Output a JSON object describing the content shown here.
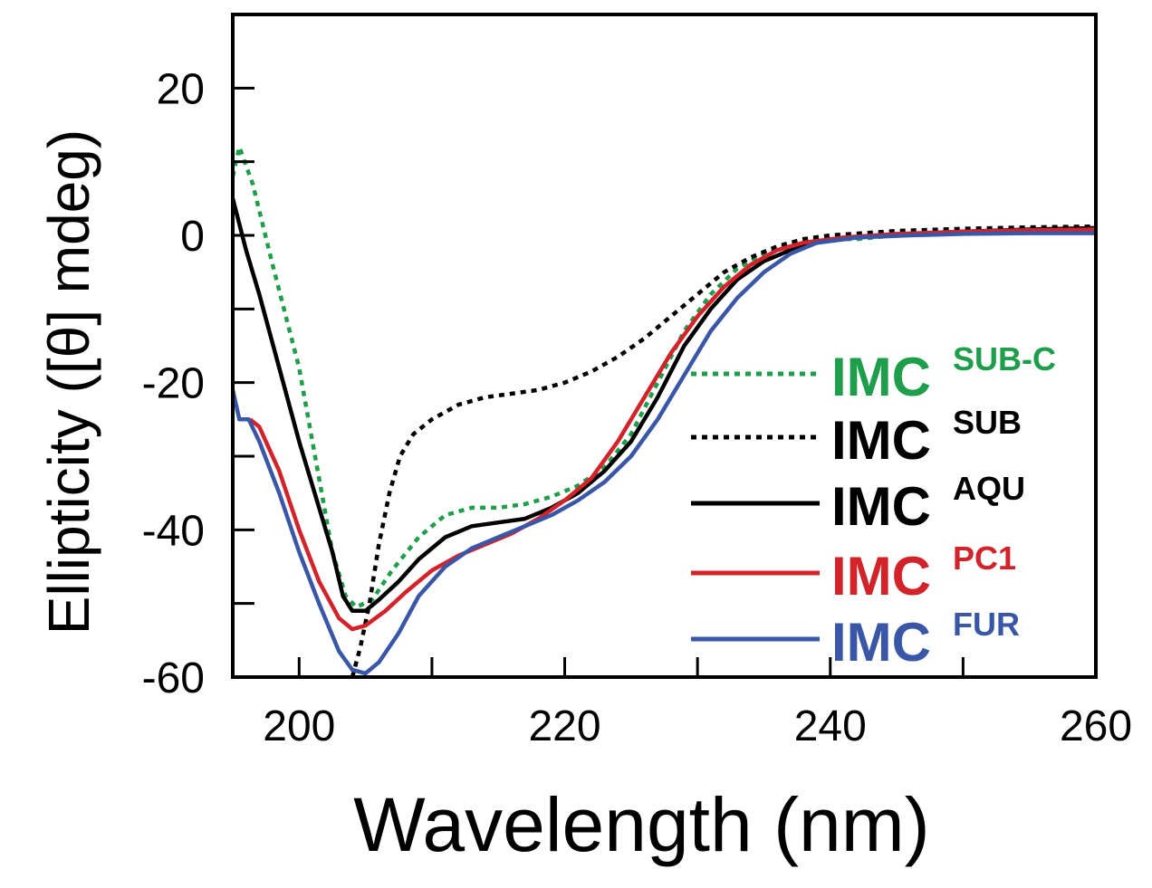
{
  "chart_data": {
    "type": "line",
    "title": "",
    "xlabel": "Wavelength (nm)",
    "ylabel": "Ellipticity ([θ] mdeg)",
    "xlim": [
      195,
      260
    ],
    "ylim": [
      -60,
      30
    ],
    "x_ticks": [
      200,
      220,
      240,
      260
    ],
    "x_tick_labels": [
      "200",
      "220",
      "240",
      "260"
    ],
    "y_ticks": [
      20,
      0,
      -20,
      -40,
      -60
    ],
    "y_tick_labels": [
      "20",
      "0",
      "-20",
      "-40",
      "-60"
    ],
    "legend_position": "right",
    "series": [
      {
        "name": "IMC",
        "superscript": "SUB-C",
        "color": "#1e9e4a",
        "dash": "dotted",
        "points": [
          [
            195,
            8
          ],
          [
            195.5,
            12
          ],
          [
            196.5,
            7
          ],
          [
            198,
            -4
          ],
          [
            200,
            -18
          ],
          [
            201.5,
            -33
          ],
          [
            202.5,
            -43
          ],
          [
            203.5,
            -49
          ],
          [
            204.3,
            -50.5
          ],
          [
            205.5,
            -49.5
          ],
          [
            207,
            -45.5
          ],
          [
            209,
            -41
          ],
          [
            211,
            -38
          ],
          [
            213,
            -37
          ],
          [
            215,
            -37
          ],
          [
            217,
            -36.5
          ],
          [
            219,
            -35.5
          ],
          [
            221,
            -34
          ],
          [
            223,
            -31.5
          ],
          [
            225,
            -27
          ],
          [
            227,
            -20
          ],
          [
            229,
            -13
          ],
          [
            231,
            -8
          ],
          [
            233,
            -4.5
          ],
          [
            235,
            -2.5
          ],
          [
            237,
            -1.2
          ],
          [
            239,
            -0.5
          ],
          [
            242,
            -0.5
          ],
          [
            246,
            0.2
          ],
          [
            250,
            0.5
          ],
          [
            255,
            0.8
          ],
          [
            260,
            1
          ]
        ]
      },
      {
        "name": "IMC",
        "superscript": "SUB",
        "color": "#000000",
        "dash": "dotted",
        "points": [
          [
            204,
            -60
          ],
          [
            204.6,
            -56
          ],
          [
            205.3,
            -50
          ],
          [
            206,
            -42
          ],
          [
            206.8,
            -35
          ],
          [
            207.6,
            -30
          ],
          [
            208.6,
            -27
          ],
          [
            210,
            -25
          ],
          [
            212,
            -23
          ],
          [
            214,
            -22
          ],
          [
            216,
            -21.5
          ],
          [
            218,
            -21
          ],
          [
            220,
            -20
          ],
          [
            222,
            -18.5
          ],
          [
            224,
            -16.5
          ],
          [
            226,
            -14
          ],
          [
            228,
            -11
          ],
          [
            230,
            -8
          ],
          [
            232,
            -5
          ],
          [
            234,
            -3
          ],
          [
            236,
            -1.5
          ],
          [
            238,
            -0.5
          ],
          [
            240,
            0
          ],
          [
            245,
            0.6
          ],
          [
            250,
            0.9
          ],
          [
            255,
            1.1
          ],
          [
            260,
            1.2
          ]
        ]
      },
      {
        "name": "IMC",
        "superscript": "AQU",
        "color": "#000000",
        "dash": "solid",
        "points": [
          [
            195,
            5
          ],
          [
            196,
            -2
          ],
          [
            197,
            -8
          ],
          [
            198.5,
            -18
          ],
          [
            200,
            -28
          ],
          [
            201.5,
            -37
          ],
          [
            202.5,
            -43
          ],
          [
            203.3,
            -49
          ],
          [
            204,
            -51
          ],
          [
            205,
            -51
          ],
          [
            206,
            -49.5
          ],
          [
            207.5,
            -47
          ],
          [
            209,
            -44
          ],
          [
            211,
            -41
          ],
          [
            213,
            -39.5
          ],
          [
            215,
            -39
          ],
          [
            217,
            -38.5
          ],
          [
            219,
            -37
          ],
          [
            221,
            -35
          ],
          [
            223,
            -32
          ],
          [
            225,
            -28
          ],
          [
            227,
            -22
          ],
          [
            229,
            -15
          ],
          [
            231,
            -10
          ],
          [
            233,
            -6
          ],
          [
            235,
            -3.5
          ],
          [
            237,
            -2
          ],
          [
            239,
            -1
          ],
          [
            242,
            -0.3
          ],
          [
            246,
            0.2
          ],
          [
            250,
            0.5
          ],
          [
            255,
            0.8
          ],
          [
            260,
            1
          ]
        ]
      },
      {
        "name": "IMC",
        "superscript": "PC1",
        "color": "#d2232a",
        "dash": "solid",
        "points": [
          [
            196.3,
            -25
          ],
          [
            197,
            -26
          ],
          [
            198.5,
            -32
          ],
          [
            200,
            -40
          ],
          [
            201.5,
            -47
          ],
          [
            203,
            -52
          ],
          [
            204,
            -53.5
          ],
          [
            205,
            -53
          ],
          [
            206.5,
            -51
          ],
          [
            208,
            -48.5
          ],
          [
            210,
            -45.5
          ],
          [
            212,
            -43.5
          ],
          [
            214,
            -42
          ],
          [
            216,
            -40.5
          ],
          [
            218,
            -38.5
          ],
          [
            220,
            -36
          ],
          [
            222,
            -33
          ],
          [
            224,
            -28
          ],
          [
            226,
            -22
          ],
          [
            228,
            -16
          ],
          [
            230,
            -11
          ],
          [
            232,
            -7
          ],
          [
            234,
            -4
          ],
          [
            236,
            -2
          ],
          [
            238,
            -1
          ],
          [
            241,
            -0.3
          ],
          [
            245,
            0.2
          ],
          [
            250,
            0.5
          ],
          [
            255,
            0.7
          ],
          [
            260,
            0.8
          ]
        ]
      },
      {
        "name": "IMC",
        "superscript": "FUR",
        "color": "#3a57a7",
        "dash": "solid",
        "points": [
          [
            195,
            -21
          ],
          [
            195.5,
            -25
          ],
          [
            196.2,
            -25
          ],
          [
            197,
            -28
          ],
          [
            198.5,
            -35
          ],
          [
            200,
            -43
          ],
          [
            201.5,
            -50
          ],
          [
            203,
            -56.5
          ],
          [
            204,
            -59
          ],
          [
            205,
            -59.5
          ],
          [
            206,
            -58
          ],
          [
            207.5,
            -54
          ],
          [
            209,
            -49
          ],
          [
            211,
            -45
          ],
          [
            213,
            -42.5
          ],
          [
            215,
            -41
          ],
          [
            217,
            -39.5
          ],
          [
            219,
            -38
          ],
          [
            221,
            -36
          ],
          [
            223,
            -33.5
          ],
          [
            225,
            -30
          ],
          [
            227,
            -25
          ],
          [
            229,
            -19
          ],
          [
            231,
            -13
          ],
          [
            233,
            -8.5
          ],
          [
            235,
            -5
          ],
          [
            237,
            -2.5
          ],
          [
            239,
            -1
          ],
          [
            242,
            -0.3
          ],
          [
            246,
            0
          ],
          [
            250,
            0.2
          ],
          [
            255,
            0.3
          ],
          [
            260,
            0.3
          ]
        ]
      }
    ]
  }
}
